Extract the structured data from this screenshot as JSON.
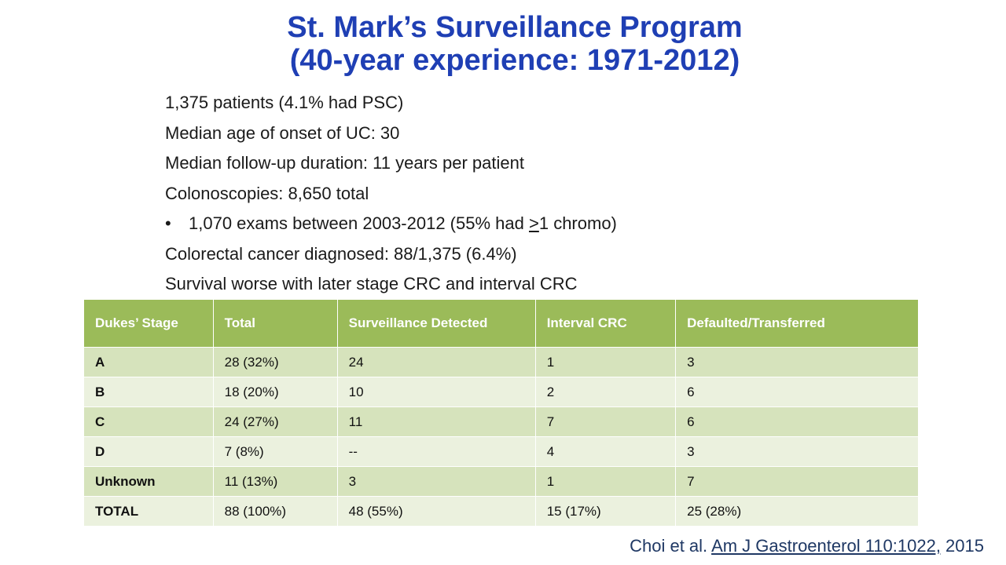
{
  "title": {
    "line1": "St. Mark’s Surveillance Program",
    "line2": "(40-year experience: 1971-2012)"
  },
  "bullets": {
    "patients": "1,375 patients (4.1% had PSC)",
    "median_age": "Median age of onset of UC: 30",
    "followup": "Median follow-up duration: 11 years per patient",
    "colonoscopies": "Colonoscopies:  8,650 total",
    "exams_prefix": "1,070 exams between 2003-2012 (55% had ",
    "exams_ge": ">",
    "exams_suffix": "1 chromo)",
    "sub_bullet": "•",
    "crc": "Colorectal cancer diagnosed: 88/1,375 (6.4%)",
    "survival": "Survival worse with later stage CRC and interval CRC"
  },
  "table": {
    "headers": [
      "Dukes’ Stage",
      "Total",
      "Surveillance Detected",
      "Interval CRC",
      "Defaulted/Transferred"
    ],
    "rows": [
      [
        "A",
        "28 (32%)",
        "24",
        "1",
        "3"
      ],
      [
        "B",
        "18 (20%)",
        "10",
        "2",
        "6"
      ],
      [
        "C",
        "24 (27%)",
        "11",
        "7",
        "6"
      ],
      [
        "D",
        "7 (8%)",
        "--",
        "4",
        "3"
      ],
      [
        "Unknown",
        "11 (13%)",
        "3",
        "1",
        "7"
      ],
      [
        "TOTAL",
        "88 (100%)",
        "48 (55%)",
        "15 (17%)",
        "25 (28%)"
      ]
    ]
  },
  "citation": {
    "authors": "Choi et al. ",
    "journal": "Am J Gastroenterol 110:1022,",
    "year": " 2015"
  },
  "colors": {
    "title": "#1f3fb4",
    "header_bg": "#9bbb59",
    "row_dark": "#d6e3bc",
    "row_light": "#ebf1de",
    "citation": "#1f3864"
  }
}
